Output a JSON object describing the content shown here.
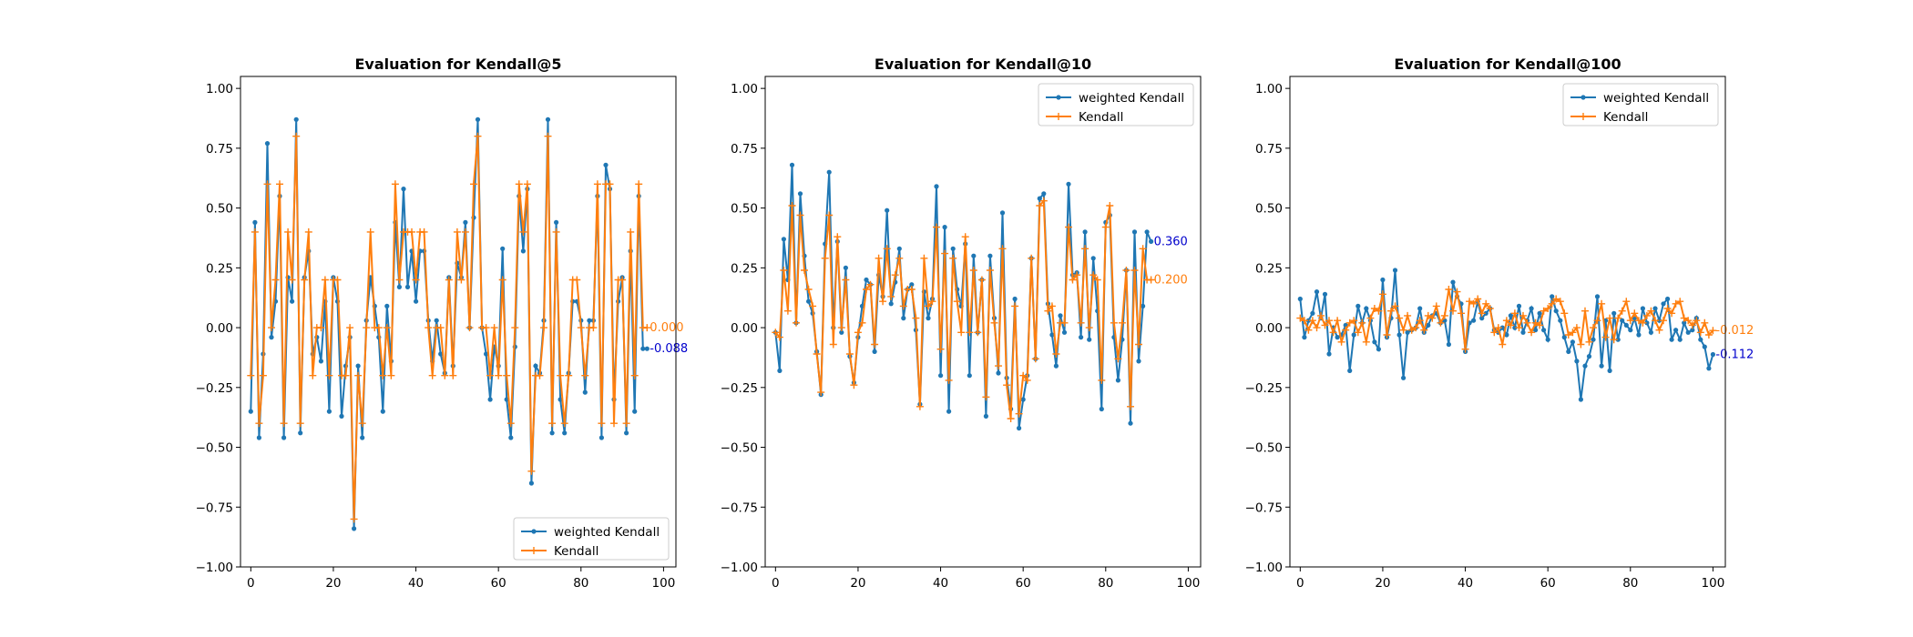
{
  "chart_data": [
    {
      "type": "line",
      "title": "Evaluation for Kendall@5",
      "xlabel": "",
      "ylabel": "",
      "xlim": [
        -2.5,
        103
      ],
      "ylim": [
        -1.0,
        1.05
      ],
      "xticks": [
        "0",
        "20",
        "40",
        "60",
        "80",
        "100"
      ],
      "yticks": [
        "−1.00",
        "−0.75",
        "−0.50",
        "−0.25",
        "0.00",
        "0.25",
        "0.50",
        "0.75",
        "1.00"
      ],
      "legend": "lower-right",
      "series": [
        {
          "name": "weighted Kendall",
          "color": "#1f77b4",
          "marker": "dot",
          "values": [
            -0.35,
            0.44,
            -0.46,
            -0.11,
            0.77,
            -0.04,
            0.11,
            0.55,
            -0.46,
            0.21,
            0.11,
            0.87,
            -0.44,
            0.21,
            0.32,
            -0.11,
            -0.04,
            -0.14,
            0.11,
            -0.35,
            0.21,
            0.11,
            -0.37,
            -0.16,
            -0.04,
            -0.84,
            -0.16,
            -0.46,
            0.03,
            0.21,
            0.09,
            -0.04,
            -0.35,
            0.09,
            -0.14,
            0.44,
            0.17,
            0.58,
            0.17,
            0.32,
            0.11,
            0.32,
            0.32,
            0.03,
            -0.14,
            0.03,
            -0.11,
            -0.19,
            0.21,
            -0.16,
            0.27,
            0.21,
            0.44,
            0.0,
            0.46,
            0.87,
            0.0,
            -0.11,
            -0.3,
            -0.08,
            -0.16,
            0.33,
            -0.3,
            -0.46,
            -0.08,
            0.55,
            0.32,
            0.58,
            -0.65,
            -0.16,
            -0.19,
            0.03,
            0.87,
            -0.44,
            0.44,
            -0.3,
            -0.44,
            -0.19,
            0.11,
            0.11,
            0.03,
            -0.27,
            0.03,
            0.03,
            0.55,
            -0.46,
            0.68,
            0.58,
            -0.3,
            0.11,
            0.21,
            -0.44,
            0.32,
            -0.35,
            0.55,
            -0.088,
            -0.088
          ]
        },
        {
          "name": "Kendall",
          "color": "#ff7f0e",
          "marker": "plus",
          "values": [
            -0.2,
            0.4,
            -0.4,
            -0.2,
            0.6,
            0.0,
            0.2,
            0.6,
            -0.4,
            0.4,
            0.2,
            0.8,
            -0.4,
            0.2,
            0.4,
            -0.2,
            0.0,
            0.0,
            0.2,
            -0.2,
            0.2,
            0.2,
            -0.2,
            -0.2,
            0.0,
            -0.8,
            -0.2,
            -0.4,
            0.0,
            0.4,
            0.0,
            0.0,
            -0.2,
            0.0,
            -0.2,
            0.6,
            0.2,
            0.4,
            0.4,
            0.4,
            0.2,
            0.4,
            0.4,
            0.0,
            -0.2,
            0.0,
            0.0,
            -0.2,
            0.2,
            -0.2,
            0.4,
            0.2,
            0.4,
            0.0,
            0.6,
            0.8,
            0.0,
            0.0,
            -0.2,
            0.0,
            -0.2,
            0.2,
            -0.2,
            -0.4,
            0.0,
            0.6,
            0.4,
            0.6,
            -0.6,
            -0.2,
            -0.2,
            0.0,
            0.8,
            -0.4,
            0.4,
            -0.2,
            -0.4,
            -0.2,
            0.2,
            0.2,
            0.0,
            -0.2,
            0.0,
            0.0,
            0.6,
            -0.4,
            0.6,
            0.6,
            -0.4,
            0.2,
            0.2,
            -0.4,
            0.4,
            -0.2,
            0.6,
            0.0,
            0.0
          ]
        }
      ],
      "end_labels": [
        {
          "text": "0.000",
          "value": 0.0,
          "color": "#ff7f0e"
        },
        {
          "text": "-0.088",
          "value": -0.088,
          "color": "#0000cc"
        }
      ]
    },
    {
      "type": "line",
      "title": "Evaluation for Kendall@10",
      "xlabel": "",
      "ylabel": "",
      "xlim": [
        -2.5,
        103
      ],
      "ylim": [
        -1.0,
        1.05
      ],
      "xticks": [
        "0",
        "20",
        "40",
        "60",
        "80",
        "100"
      ],
      "yticks": [
        "−1.00",
        "−0.75",
        "−0.50",
        "−0.25",
        "0.00",
        "0.25",
        "0.50",
        "0.75",
        "1.00"
      ],
      "legend": "top-right",
      "series": [
        {
          "name": "weighted Kendall",
          "color": "#1f77b4",
          "marker": "dot",
          "values": [
            -0.02,
            -0.18,
            0.37,
            0.2,
            0.68,
            0.02,
            0.56,
            0.3,
            0.11,
            0.06,
            -0.1,
            -0.28,
            0.35,
            0.65,
            0.0,
            0.36,
            -0.02,
            0.25,
            -0.12,
            -0.23,
            -0.04,
            0.09,
            0.2,
            0.18,
            -0.1,
            0.22,
            0.13,
            0.49,
            0.1,
            0.19,
            0.33,
            0.04,
            0.16,
            0.18,
            -0.01,
            -0.32,
            0.15,
            0.04,
            0.12,
            0.59,
            -0.2,
            0.42,
            -0.35,
            0.33,
            0.16,
            0.09,
            0.35,
            -0.2,
            0.3,
            -0.02,
            0.2,
            -0.37,
            0.3,
            0.04,
            -0.19,
            0.48,
            -0.21,
            -0.34,
            0.12,
            -0.42,
            -0.3,
            -0.2,
            0.29,
            -0.13,
            0.54,
            0.56,
            0.1,
            -0.03,
            -0.16,
            0.05,
            -0.02,
            0.6,
            0.22,
            0.23,
            -0.04,
            0.4,
            -0.05,
            0.29,
            0.07,
            -0.34,
            0.44,
            0.47,
            -0.04,
            -0.22,
            -0.05,
            0.24,
            -0.4,
            0.4,
            -0.14,
            0.09,
            0.4,
            0.36
          ]
        },
        {
          "name": "Kendall",
          "color": "#ff7f0e",
          "marker": "plus",
          "values": [
            -0.02,
            -0.04,
            0.24,
            0.07,
            0.51,
            0.02,
            0.47,
            0.24,
            0.16,
            0.09,
            -0.11,
            -0.27,
            0.29,
            0.47,
            -0.07,
            0.38,
            0.0,
            0.2,
            -0.11,
            -0.24,
            -0.02,
            0.02,
            0.16,
            0.18,
            -0.07,
            0.29,
            0.11,
            0.33,
            0.13,
            0.22,
            0.29,
            0.09,
            0.16,
            0.16,
            0.04,
            -0.33,
            0.29,
            0.09,
            0.11,
            0.42,
            -0.09,
            0.31,
            -0.22,
            0.29,
            0.11,
            -0.02,
            0.38,
            -0.02,
            0.24,
            -0.02,
            0.2,
            -0.29,
            0.24,
            0.02,
            -0.16,
            0.33,
            -0.24,
            -0.38,
            0.09,
            -0.36,
            -0.2,
            -0.22,
            0.29,
            -0.13,
            0.51,
            0.53,
            0.07,
            0.09,
            -0.11,
            0.02,
            0.02,
            0.42,
            0.2,
            0.22,
            0.02,
            0.33,
            0.0,
            0.22,
            0.2,
            -0.22,
            0.42,
            0.51,
            0.02,
            -0.13,
            0.02,
            0.24,
            -0.33,
            0.24,
            -0.07,
            0.33,
            0.2,
            0.2
          ]
        }
      ],
      "end_labels": [
        {
          "text": "0.360",
          "value": 0.36,
          "color": "#0000cc"
        },
        {
          "text": "0.200",
          "value": 0.2,
          "color": "#ff7f0e"
        }
      ]
    },
    {
      "type": "line",
      "title": "Evaluation for Kendall@100",
      "xlabel": "",
      "ylabel": "",
      "xlim": [
        -2.5,
        103
      ],
      "ylim": [
        -1.0,
        1.05
      ],
      "xticks": [
        "0",
        "20",
        "40",
        "60",
        "80",
        "100"
      ],
      "yticks": [
        "−1.00",
        "−0.75",
        "−0.50",
        "−0.25",
        "0.00",
        "0.25",
        "0.50",
        "0.75",
        "1.00"
      ],
      "legend": "top-right",
      "series": [
        {
          "name": "weighted Kendall",
          "color": "#1f77b4",
          "marker": "dot",
          "values": [
            0.12,
            -0.04,
            0.03,
            0.06,
            0.15,
            0.04,
            0.14,
            -0.11,
            0.0,
            -0.04,
            -0.03,
            0.01,
            -0.18,
            -0.03,
            0.09,
            0.02,
            0.08,
            0.03,
            -0.06,
            -0.09,
            0.2,
            -0.04,
            0.04,
            0.24,
            -0.03,
            -0.21,
            -0.02,
            -0.01,
            0.0,
            0.08,
            -0.02,
            0.01,
            0.05,
            0.06,
            0.02,
            0.03,
            -0.07,
            0.19,
            0.13,
            0.1,
            -0.1,
            0.02,
            0.03,
            0.11,
            0.04,
            0.06,
            0.08,
            -0.01,
            -0.02,
            0.0,
            -0.03,
            0.05,
            0.0,
            0.09,
            -0.02,
            0.03,
            0.08,
            -0.01,
            0.06,
            -0.01,
            -0.05,
            0.13,
            0.07,
            0.03,
            -0.04,
            -0.1,
            -0.06,
            -0.14,
            -0.3,
            -0.16,
            -0.12,
            -0.05,
            0.13,
            -0.16,
            0.03,
            -0.18,
            0.06,
            -0.05,
            0.03,
            0.01,
            -0.01,
            0.04,
            -0.03,
            0.08,
            0.02,
            -0.02,
            0.08,
            0.03,
            0.1,
            0.12,
            -0.05,
            -0.01,
            -0.05,
            0.02,
            -0.02,
            -0.01,
            0.04,
            -0.05,
            -0.08,
            -0.17,
            -0.112
          ]
        },
        {
          "name": "Kendall",
          "color": "#ff7f0e",
          "marker": "plus",
          "values": [
            0.04,
            0.03,
            -0.01,
            0.03,
            0.0,
            0.05,
            0.01,
            0.03,
            -0.02,
            0.03,
            -0.06,
            -0.01,
            0.02,
            0.03,
            -0.02,
            0.02,
            -0.06,
            0.04,
            0.08,
            0.07,
            0.14,
            -0.03,
            0.07,
            0.09,
            0.04,
            -0.01,
            0.05,
            -0.01,
            0.0,
            0.03,
            -0.01,
            0.05,
            0.04,
            0.09,
            0.02,
            0.05,
            0.16,
            0.07,
            0.15,
            0.06,
            -0.09,
            0.11,
            0.1,
            0.12,
            0.06,
            0.1,
            0.08,
            -0.02,
            0.0,
            -0.07,
            0.03,
            0.01,
            0.06,
            0.0,
            0.05,
            0.02,
            -0.02,
            0.02,
            0.01,
            0.07,
            0.08,
            0.1,
            0.12,
            0.11,
            0.06,
            -0.03,
            -0.02,
            0.0,
            -0.07,
            0.07,
            -0.06,
            0.0,
            0.03,
            0.1,
            -0.04,
            0.04,
            -0.05,
            0.04,
            0.07,
            0.11,
            0.03,
            0.06,
            0.03,
            0.02,
            0.05,
            0.07,
            0.03,
            -0.01,
            0.03,
            0.08,
            0.06,
            0.1,
            0.11,
            0.04,
            0.03,
            0.01,
            0.03,
            -0.02,
            0.02,
            -0.03,
            -0.012
          ]
        }
      ],
      "end_labels": [
        {
          "text": "-0.012",
          "value": -0.012,
          "color": "#ff7f0e"
        },
        {
          "text": "-0.112",
          "value": -0.112,
          "color": "#0000cc"
        }
      ]
    }
  ]
}
